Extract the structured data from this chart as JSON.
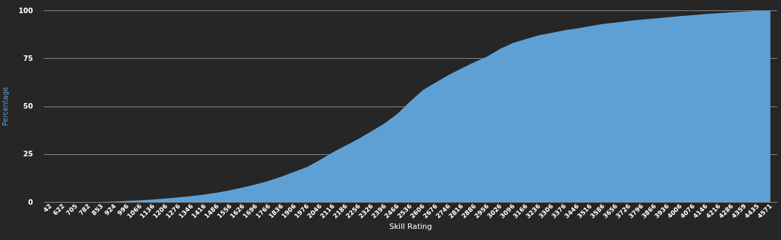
{
  "chart_data": {
    "type": "area",
    "xlabel": "Skill Rating",
    "ylabel": "Percentage",
    "categories": [
      "42",
      "622",
      "705",
      "782",
      "853",
      "924",
      "996",
      "1066",
      "1136",
      "1206",
      "1276",
      "1346",
      "1416",
      "1486",
      "1556",
      "1626",
      "1696",
      "1766",
      "1836",
      "1906",
      "1976",
      "2046",
      "2116",
      "2186",
      "2256",
      "2326",
      "2396",
      "2466",
      "2536",
      "2606",
      "2676",
      "2746",
      "2816",
      "2886",
      "2956",
      "3026",
      "3096",
      "3166",
      "3236",
      "3306",
      "3376",
      "3446",
      "3516",
      "3586",
      "3656",
      "3726",
      "3796",
      "3866",
      "3936",
      "4006",
      "4076",
      "4146",
      "4216",
      "4286",
      "4359",
      "4435",
      "4571"
    ],
    "series": [
      {
        "color": "#5fa0d4",
        "values": [
          0,
          0,
          0,
          0,
          0,
          0.2,
          0.5,
          0.9,
          1.3,
          1.8,
          2.4,
          3.1,
          3.9,
          4.9,
          6.1,
          7.6,
          9.2,
          11,
          13.3,
          15.8,
          18.3,
          22,
          26,
          29.5,
          33,
          37,
          41,
          46,
          52.5,
          58.5,
          62.5,
          66.3,
          69.8,
          73,
          76,
          80,
          83,
          85,
          87,
          88.3,
          89.6,
          90.6,
          91.8,
          93,
          93.7,
          94.5,
          95.2,
          95.8,
          96.4,
          97,
          97.6,
          98.1,
          98.6,
          99,
          99.4,
          99.7,
          100
        ]
      }
    ],
    "ylim": [
      0,
      100
    ],
    "yticks": [
      0,
      25,
      50,
      75,
      100
    ],
    "grid": "y"
  }
}
